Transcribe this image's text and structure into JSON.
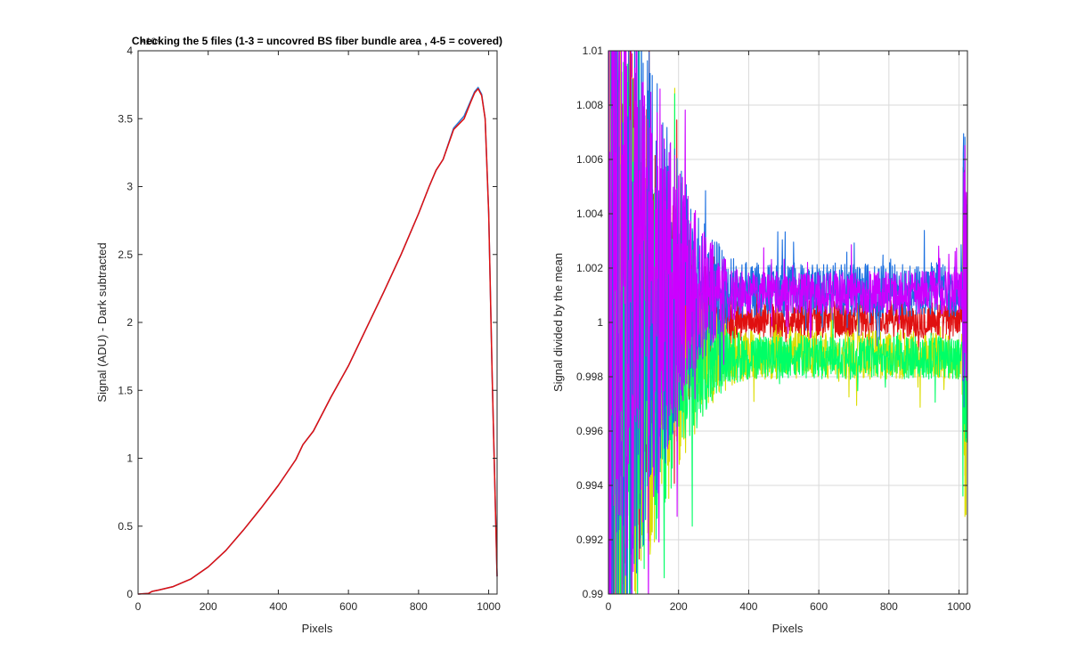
{
  "chart_data": [
    {
      "type": "line",
      "title": "Checking the 5 files (1-3 = uncovred BS fiber bundle area , 4-5 = covered)",
      "xlabel": "Pixels",
      "ylabel": "Signal (ADU) - Dark subtracted",
      "y_exponent": "×10⁴",
      "xlim": [
        0,
        1024
      ],
      "ylim": [
        0,
        4
      ],
      "xticks": [
        0,
        200,
        400,
        600,
        800,
        1000
      ],
      "yticks": [
        0,
        0.5,
        1,
        1.5,
        2,
        2.5,
        3,
        3.5,
        4
      ],
      "grid": false,
      "x": [
        0,
        30,
        40,
        60,
        100,
        150,
        200,
        250,
        300,
        350,
        400,
        450,
        470,
        500,
        550,
        600,
        650,
        700,
        750,
        800,
        830,
        850,
        870,
        900,
        930,
        950,
        960,
        970,
        980,
        990,
        1000,
        1010,
        1024
      ],
      "series": [
        {
          "color": "#2b7bd6",
          "values": [
            0,
            0.005,
            0.02,
            0.03,
            0.055,
            0.11,
            0.2,
            0.32,
            0.47,
            0.63,
            0.8,
            0.99,
            1.1,
            1.2,
            1.45,
            1.68,
            1.95,
            2.22,
            2.5,
            2.8,
            3.0,
            3.12,
            3.2,
            3.43,
            3.52,
            3.64,
            3.7,
            3.73,
            3.68,
            3.5,
            2.8,
            1.6,
            0.13
          ]
        },
        {
          "color": "#e01010",
          "values": [
            0,
            0.005,
            0.02,
            0.03,
            0.055,
            0.11,
            0.2,
            0.32,
            0.47,
            0.63,
            0.8,
            0.99,
            1.1,
            1.2,
            1.45,
            1.68,
            1.95,
            2.22,
            2.5,
            2.8,
            3.0,
            3.12,
            3.2,
            3.42,
            3.5,
            3.63,
            3.69,
            3.72,
            3.67,
            3.5,
            2.8,
            1.6,
            0.13
          ]
        }
      ]
    },
    {
      "type": "line",
      "title": "",
      "xlabel": "Pixels",
      "ylabel": "Signal divided by the mean",
      "xlim": [
        0,
        1024
      ],
      "ylim": [
        0.99,
        1.01
      ],
      "xticks": [
        0,
        200,
        400,
        600,
        800,
        1000
      ],
      "yticks": [
        0.99,
        0.992,
        0.994,
        0.996,
        0.998,
        1,
        1.002,
        1.004,
        1.006,
        1.008,
        1.01
      ],
      "grid": true,
      "series": [
        {
          "color": "#e01010",
          "center": 1.0001,
          "amp_start": 0.014,
          "amp_end": 0.0007
        },
        {
          "color": "#dddd00",
          "center": 0.9988,
          "amp_start": 0.014,
          "amp_end": 0.0009
        },
        {
          "color": "#00ff66",
          "center": 0.9987,
          "amp_start": 0.014,
          "amp_end": 0.0008
        },
        {
          "color": "#1a6fe0",
          "center": 1.0012,
          "amp_start": 0.016,
          "amp_end": 0.001
        },
        {
          "color": "#cc00ff",
          "center": 1.0011,
          "amp_start": 0.016,
          "amp_end": 0.0008
        }
      ]
    }
  ]
}
